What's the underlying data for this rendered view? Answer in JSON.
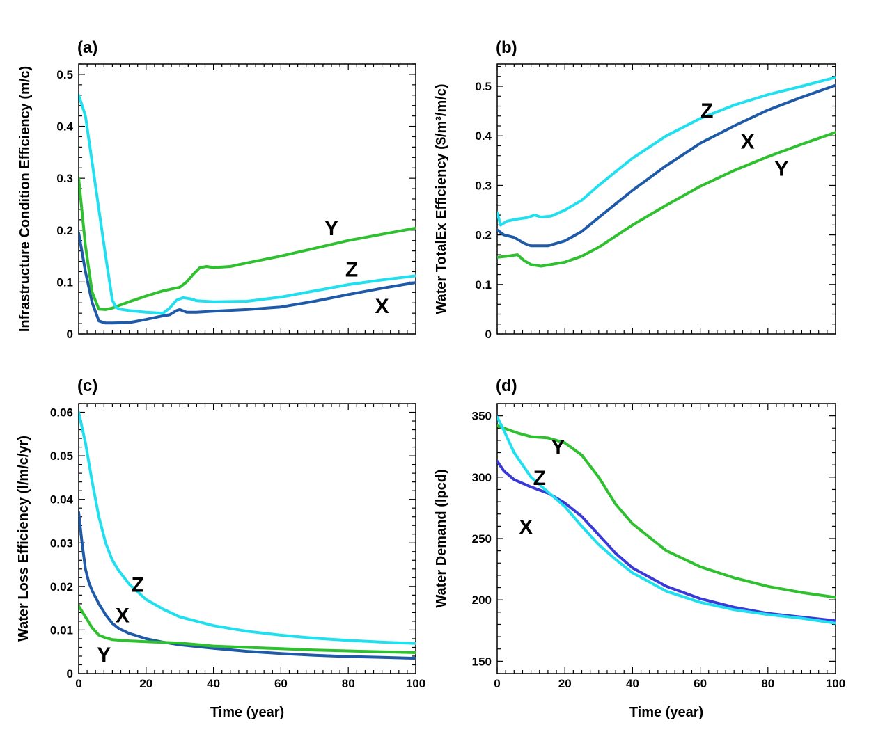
{
  "colors": {
    "X": "#1f5aa8",
    "X_d": "#3a3ad8",
    "Y": "#2ec02e",
    "Z": "#20e0f0"
  },
  "chart_data": [
    {
      "id": "a",
      "panel_label": "(a)",
      "type": "line",
      "ylabel": "Infrastructure Condition Efficiency (m/c)",
      "xlabel": "",
      "xlim": [
        0,
        100
      ],
      "ylim": [
        0,
        0.52
      ],
      "xticks": [],
      "yticks": [
        0,
        0.1,
        0.2,
        0.3,
        0.4,
        0.5
      ],
      "ytick_labels": [
        "0",
        "0.1",
        "0.2",
        "0.3",
        "0.4",
        "0.5"
      ],
      "series": [
        {
          "name": "X",
          "color_key": "X",
          "points": [
            [
              0,
              0.195
            ],
            [
              2,
              0.12
            ],
            [
              4,
              0.06
            ],
            [
              6,
              0.025
            ],
            [
              8,
              0.021
            ],
            [
              10,
              0.021
            ],
            [
              15,
              0.022
            ],
            [
              20,
              0.028
            ],
            [
              25,
              0.035
            ],
            [
              27,
              0.037
            ],
            [
              29,
              0.045
            ],
            [
              30,
              0.047
            ],
            [
              32,
              0.042
            ],
            [
              35,
              0.042
            ],
            [
              40,
              0.044
            ],
            [
              50,
              0.047
            ],
            [
              60,
              0.052
            ],
            [
              70,
              0.063
            ],
            [
              80,
              0.076
            ],
            [
              90,
              0.088
            ],
            [
              100,
              0.099
            ]
          ]
        },
        {
          "name": "Y",
          "color_key": "Y",
          "points": [
            [
              0,
              0.3
            ],
            [
              2,
              0.17
            ],
            [
              4,
              0.08
            ],
            [
              6,
              0.048
            ],
            [
              8,
              0.047
            ],
            [
              10,
              0.05
            ],
            [
              12,
              0.055
            ],
            [
              15,
              0.062
            ],
            [
              20,
              0.073
            ],
            [
              25,
              0.083
            ],
            [
              30,
              0.09
            ],
            [
              32,
              0.1
            ],
            [
              34,
              0.115
            ],
            [
              36,
              0.128
            ],
            [
              38,
              0.13
            ],
            [
              40,
              0.128
            ],
            [
              45,
              0.13
            ],
            [
              50,
              0.137
            ],
            [
              60,
              0.15
            ],
            [
              70,
              0.165
            ],
            [
              80,
              0.18
            ],
            [
              90,
              0.192
            ],
            [
              100,
              0.204
            ]
          ]
        },
        {
          "name": "Z",
          "color_key": "Z",
          "points": [
            [
              0,
              0.46
            ],
            [
              2,
              0.42
            ],
            [
              4,
              0.33
            ],
            [
              6,
              0.24
            ],
            [
              8,
              0.15
            ],
            [
              10,
              0.065
            ],
            [
              11,
              0.052
            ],
            [
              12,
              0.048
            ],
            [
              15,
              0.045
            ],
            [
              20,
              0.042
            ],
            [
              25,
              0.04
            ],
            [
              27,
              0.05
            ],
            [
              29,
              0.065
            ],
            [
              31,
              0.07
            ],
            [
              33,
              0.068
            ],
            [
              35,
              0.064
            ],
            [
              40,
              0.062
            ],
            [
              50,
              0.063
            ],
            [
              60,
              0.071
            ],
            [
              70,
              0.083
            ],
            [
              80,
              0.095
            ],
            [
              90,
              0.104
            ],
            [
              100,
              0.112
            ]
          ]
        }
      ],
      "annotations": [
        {
          "text": "Y",
          "x": 75,
          "y": 0.205
        },
        {
          "text": "Z",
          "x": 81,
          "y": 0.125
        },
        {
          "text": "X",
          "x": 90,
          "y": 0.055
        }
      ]
    },
    {
      "id": "b",
      "panel_label": "(b)",
      "type": "line",
      "ylabel": "Water TotalEx Efficiency ($/m³/m/c)",
      "xlabel": "",
      "xlim": [
        0,
        100
      ],
      "ylim": [
        0,
        0.545
      ],
      "xticks": [],
      "yticks": [
        0,
        0.1,
        0.2,
        0.3,
        0.4,
        0.5
      ],
      "ytick_labels": [
        "0",
        "0.1",
        "0.2",
        "0.3",
        "0.4",
        "0.5"
      ],
      "series": [
        {
          "name": "X",
          "color_key": "X",
          "points": [
            [
              0,
              0.21
            ],
            [
              2,
              0.2
            ],
            [
              5,
              0.195
            ],
            [
              8,
              0.183
            ],
            [
              10,
              0.178
            ],
            [
              15,
              0.178
            ],
            [
              20,
              0.188
            ],
            [
              25,
              0.207
            ],
            [
              30,
              0.235
            ],
            [
              40,
              0.29
            ],
            [
              50,
              0.34
            ],
            [
              60,
              0.385
            ],
            [
              70,
              0.42
            ],
            [
              80,
              0.452
            ],
            [
              90,
              0.478
            ],
            [
              100,
              0.502
            ]
          ]
        },
        {
          "name": "Y",
          "color_key": "Y",
          "points": [
            [
              0,
              0.155
            ],
            [
              3,
              0.157
            ],
            [
              6,
              0.16
            ],
            [
              8,
              0.148
            ],
            [
              10,
              0.14
            ],
            [
              13,
              0.137
            ],
            [
              20,
              0.145
            ],
            [
              25,
              0.157
            ],
            [
              30,
              0.175
            ],
            [
              40,
              0.22
            ],
            [
              50,
              0.26
            ],
            [
              60,
              0.298
            ],
            [
              70,
              0.33
            ],
            [
              80,
              0.358
            ],
            [
              90,
              0.383
            ],
            [
              100,
              0.407
            ]
          ]
        },
        {
          "name": "Z",
          "color_key": "Z",
          "points": [
            [
              0,
              0.245
            ],
            [
              1,
              0.22
            ],
            [
              3,
              0.228
            ],
            [
              6,
              0.232
            ],
            [
              9,
              0.235
            ],
            [
              11,
              0.24
            ],
            [
              13,
              0.236
            ],
            [
              16,
              0.238
            ],
            [
              20,
              0.25
            ],
            [
              25,
              0.27
            ],
            [
              30,
              0.3
            ],
            [
              40,
              0.355
            ],
            [
              50,
              0.4
            ],
            [
              60,
              0.435
            ],
            [
              70,
              0.462
            ],
            [
              80,
              0.483
            ],
            [
              90,
              0.5
            ],
            [
              100,
              0.518
            ]
          ]
        }
      ],
      "annotations": [
        {
          "text": "Z",
          "x": 62,
          "y": 0.452
        },
        {
          "text": "X",
          "x": 74,
          "y": 0.39
        },
        {
          "text": "Y",
          "x": 84,
          "y": 0.335
        }
      ]
    },
    {
      "id": "c",
      "panel_label": "(c)",
      "type": "line",
      "ylabel": "Water Loss Efficiency (l/m/c/yr)",
      "xlabel": "Time (year)",
      "xlim": [
        0,
        100
      ],
      "ylim": [
        0,
        0.062
      ],
      "xticks": [
        0,
        20,
        40,
        60,
        80,
        100
      ],
      "xtick_labels": [
        "0",
        "20",
        "40",
        "60",
        "80",
        "100"
      ],
      "yticks": [
        0,
        0.01,
        0.02,
        0.03,
        0.04,
        0.05,
        0.06
      ],
      "ytick_labels": [
        "0",
        "0.01",
        "0.02",
        "0.03",
        "0.04",
        "0.05",
        "0.06"
      ],
      "series": [
        {
          "name": "X",
          "color_key": "X",
          "points": [
            [
              0,
              0.037
            ],
            [
              1,
              0.03
            ],
            [
              2,
              0.024
            ],
            [
              3,
              0.021
            ],
            [
              4,
              0.019
            ],
            [
              6,
              0.016
            ],
            [
              8,
              0.0135
            ],
            [
              10,
              0.0115
            ],
            [
              12,
              0.0103
            ],
            [
              15,
              0.0092
            ],
            [
              20,
              0.008
            ],
            [
              25,
              0.0072
            ],
            [
              30,
              0.0066
            ],
            [
              40,
              0.0058
            ],
            [
              50,
              0.0051
            ],
            [
              60,
              0.0046
            ],
            [
              70,
              0.0042
            ],
            [
              80,
              0.0039
            ],
            [
              90,
              0.0037
            ],
            [
              100,
              0.0035
            ]
          ]
        },
        {
          "name": "Y",
          "color_key": "Y",
          "points": [
            [
              0,
              0.0155
            ],
            [
              2,
              0.013
            ],
            [
              4,
              0.0105
            ],
            [
              6,
              0.0088
            ],
            [
              8,
              0.0082
            ],
            [
              10,
              0.0078
            ],
            [
              15,
              0.0075
            ],
            [
              20,
              0.0073
            ],
            [
              30,
              0.007
            ],
            [
              40,
              0.0063
            ],
            [
              50,
              0.006
            ],
            [
              60,
              0.0057
            ],
            [
              70,
              0.0054
            ],
            [
              80,
              0.0052
            ],
            [
              90,
              0.005
            ],
            [
              100,
              0.0048
            ]
          ]
        },
        {
          "name": "Z",
          "color_key": "Z",
          "points": [
            [
              0,
              0.06
            ],
            [
              2,
              0.053
            ],
            [
              4,
              0.044
            ],
            [
              6,
              0.036
            ],
            [
              8,
              0.03
            ],
            [
              10,
              0.026
            ],
            [
              12,
              0.0235
            ],
            [
              15,
              0.0205
            ],
            [
              20,
              0.017
            ],
            [
              25,
              0.0148
            ],
            [
              30,
              0.013
            ],
            [
              40,
              0.011
            ],
            [
              50,
              0.0097
            ],
            [
              60,
              0.0088
            ],
            [
              70,
              0.0081
            ],
            [
              80,
              0.0076
            ],
            [
              90,
              0.0072
            ],
            [
              100,
              0.0069
            ]
          ]
        }
      ],
      "annotations": [
        {
          "text": "Z",
          "x": 17.5,
          "y": 0.0205
        },
        {
          "text": "X",
          "x": 13,
          "y": 0.0135
        },
        {
          "text": "Y",
          "x": 7.5,
          "y": 0.0045
        }
      ]
    },
    {
      "id": "d",
      "panel_label": "(d)",
      "type": "line",
      "ylabel": "Water Demand (lpcd)",
      "xlabel": "Time (year)",
      "xlim": [
        0,
        100
      ],
      "ylim": [
        140,
        360
      ],
      "xticks": [
        0,
        20,
        40,
        60,
        80,
        100
      ],
      "xtick_labels": [
        "0",
        "20",
        "40",
        "60",
        "80",
        "100"
      ],
      "yticks": [
        150,
        200,
        250,
        300,
        350
      ],
      "ytick_labels": [
        "150",
        "200",
        "250",
        "300",
        "350"
      ],
      "series": [
        {
          "name": "X",
          "color_key": "X_d",
          "points": [
            [
              0,
              313
            ],
            [
              2,
              305
            ],
            [
              5,
              298
            ],
            [
              10,
              292
            ],
            [
              15,
              287
            ],
            [
              20,
              279
            ],
            [
              25,
              268
            ],
            [
              30,
              253
            ],
            [
              35,
              238
            ],
            [
              40,
              226
            ],
            [
              50,
              211
            ],
            [
              60,
              201
            ],
            [
              70,
              194
            ],
            [
              80,
              189
            ],
            [
              90,
              186
            ],
            [
              100,
              183
            ]
          ]
        },
        {
          "name": "Y",
          "color_key": "Y",
          "points": [
            [
              0,
              342
            ],
            [
              3,
              339
            ],
            [
              6,
              336
            ],
            [
              10,
              333
            ],
            [
              15,
              332
            ],
            [
              20,
              328
            ],
            [
              25,
              318
            ],
            [
              30,
              300
            ],
            [
              35,
              278
            ],
            [
              40,
              262
            ],
            [
              50,
              240
            ],
            [
              60,
              227
            ],
            [
              70,
              218
            ],
            [
              80,
              211
            ],
            [
              90,
              206
            ],
            [
              100,
              202
            ]
          ]
        },
        {
          "name": "Z",
          "color_key": "Z",
          "points": [
            [
              0,
              349
            ],
            [
              2,
              338
            ],
            [
              5,
              320
            ],
            [
              10,
              300
            ],
            [
              15,
              288
            ],
            [
              20,
              276
            ],
            [
              25,
              260
            ],
            [
              30,
              245
            ],
            [
              35,
              233
            ],
            [
              40,
              222
            ],
            [
              50,
              207
            ],
            [
              60,
              198
            ],
            [
              70,
              192
            ],
            [
              80,
              188
            ],
            [
              90,
              185
            ],
            [
              100,
              181
            ]
          ]
        }
      ],
      "annotations": [
        {
          "text": "Y",
          "x": 18,
          "y": 325
        },
        {
          "text": "Z",
          "x": 12.5,
          "y": 300
        },
        {
          "text": "X",
          "x": 8.5,
          "y": 260
        }
      ]
    }
  ]
}
